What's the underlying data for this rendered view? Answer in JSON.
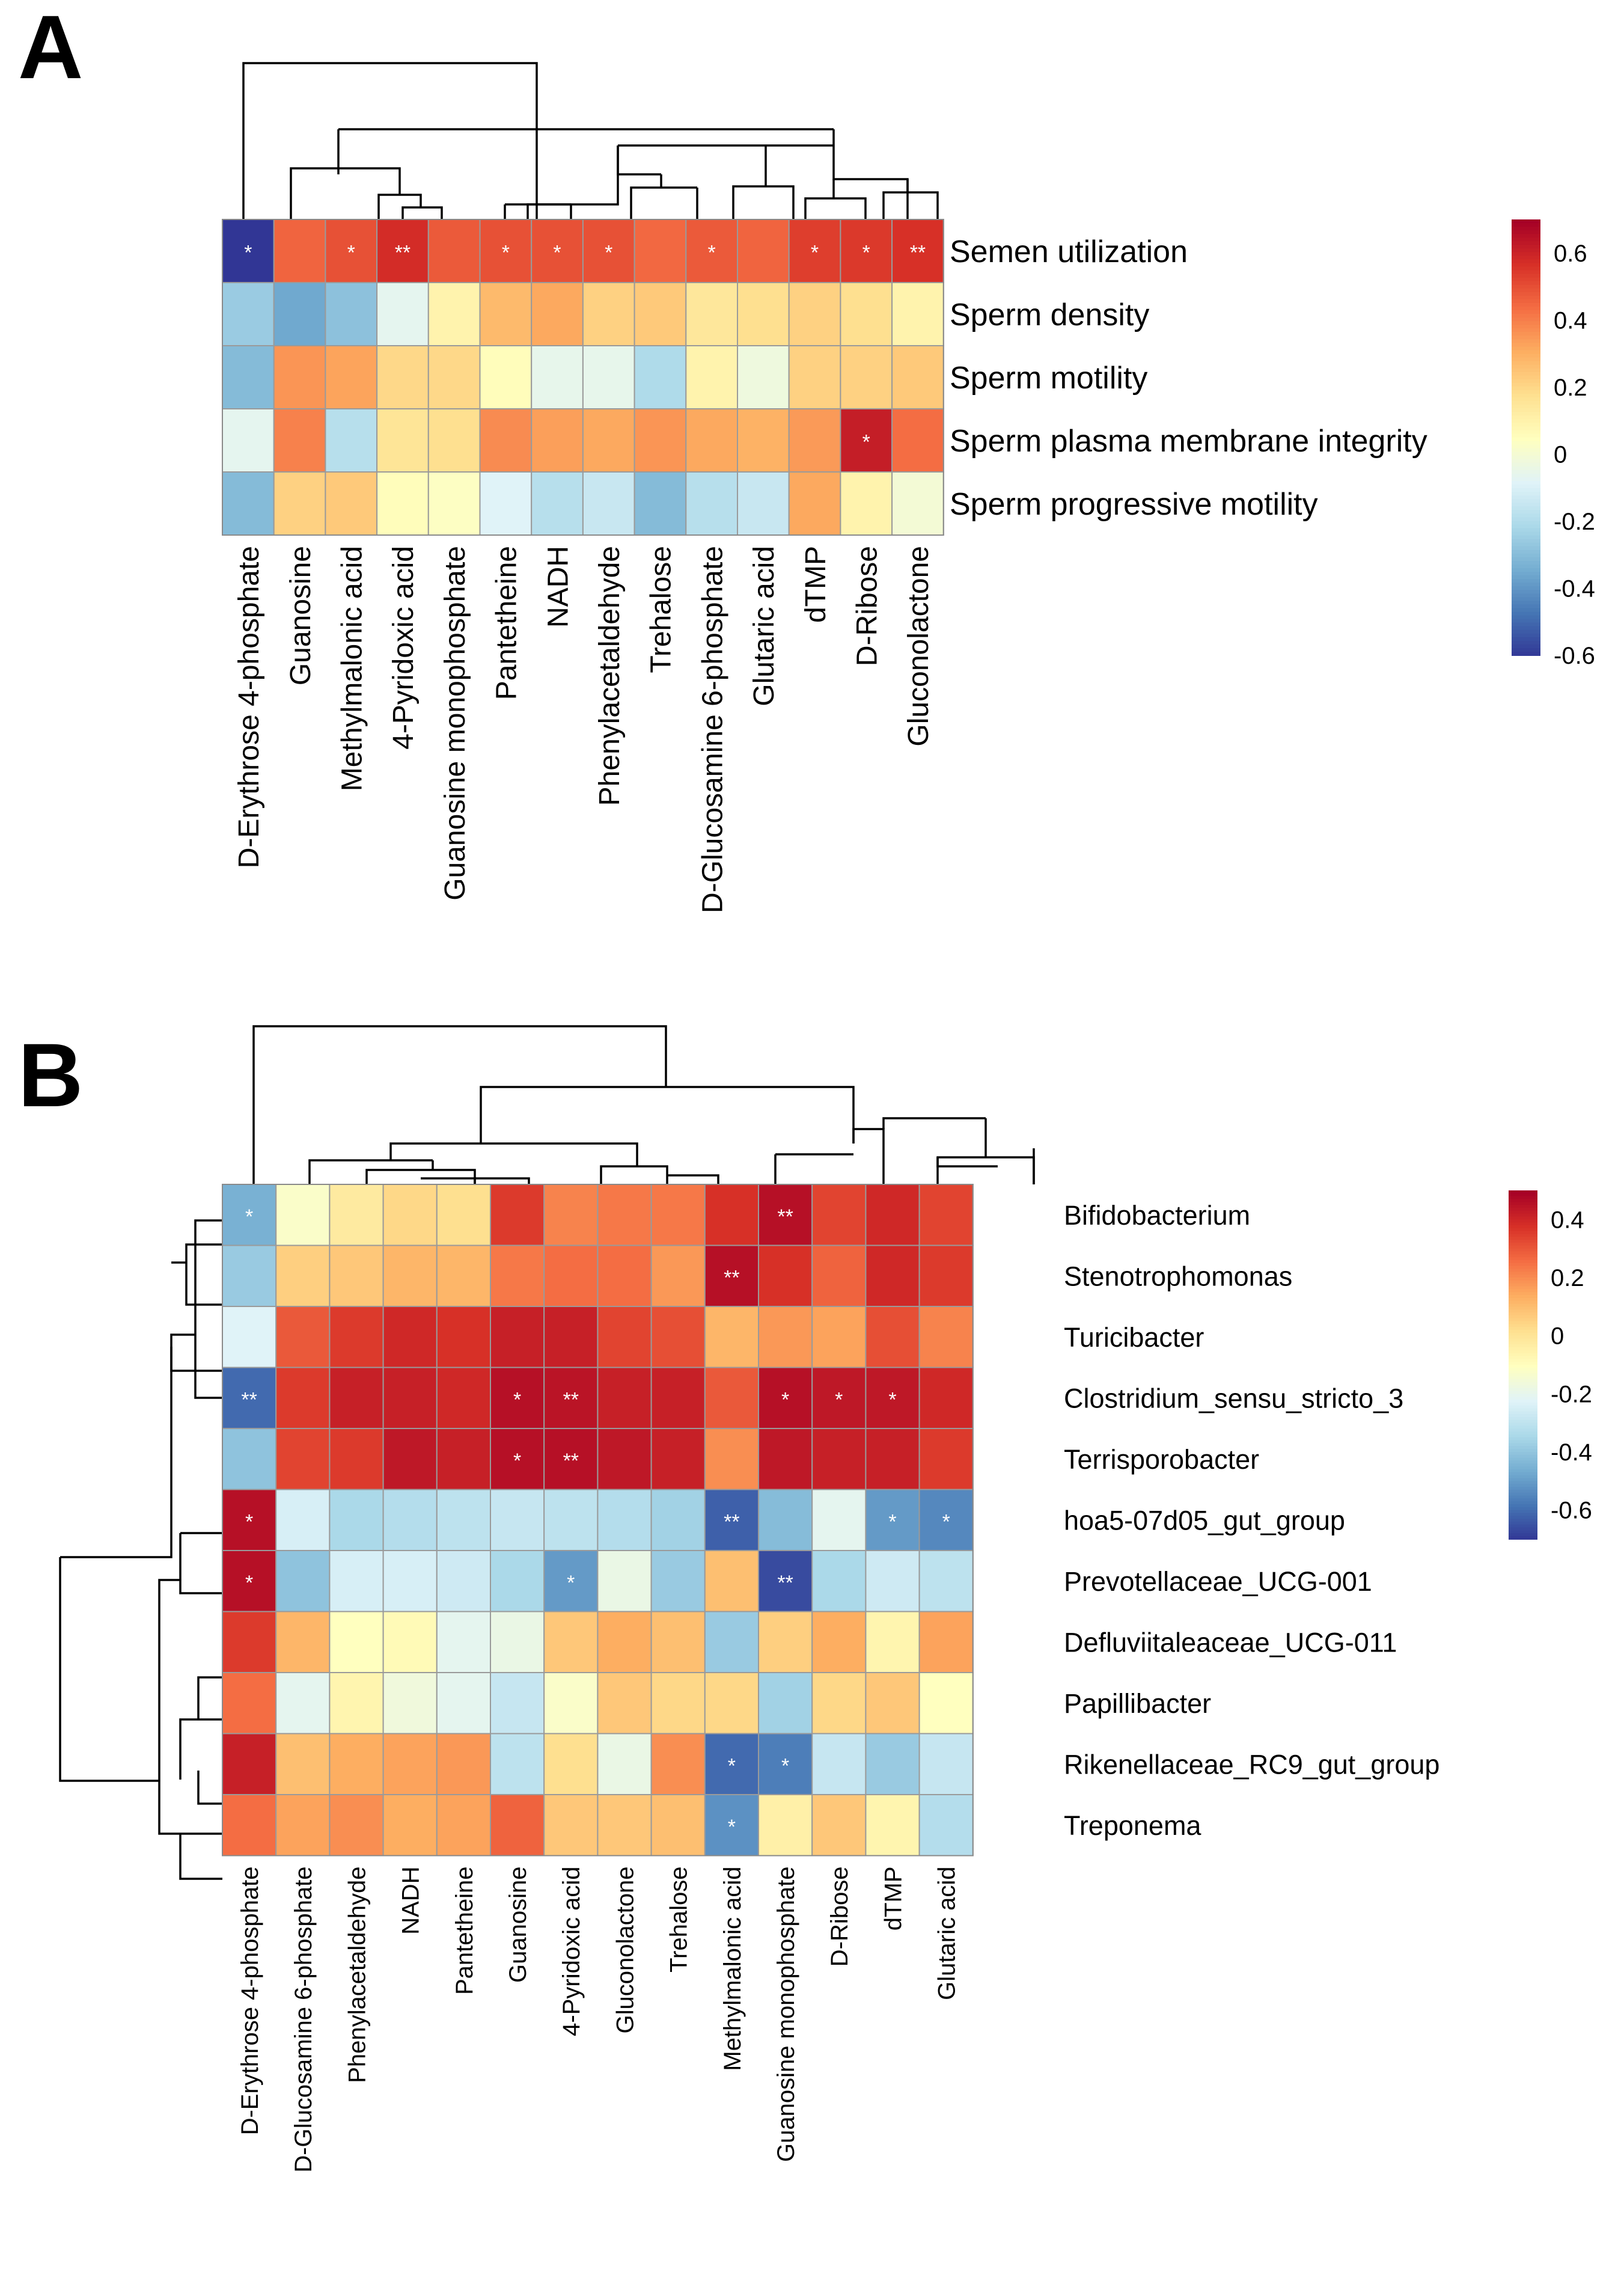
{
  "chart_data": [
    {
      "panel_label": "A",
      "type": "heatmap",
      "rows": [
        "Semen utilization",
        "Sperm density",
        "Sperm motility",
        "Sperm plasma membrane integrity",
        "Sperm progressive motility"
      ],
      "columns": [
        "D-Erythrose 4-phosphate",
        "Guanosine",
        "Methylmalonic acid",
        "4-Pyridoxic acid",
        "Guanosine monophosphate",
        "Pantetheine",
        "NADH",
        "Phenylacetaldehyde",
        "Trehalose",
        "D-Glucosamine 6-phosphate",
        "Glutaric acid",
        "dTMP",
        "D-Ribose",
        "Gluconolactone"
      ],
      "values": [
        [
          -0.6,
          0.46,
          0.5,
          0.58,
          0.48,
          0.5,
          0.5,
          0.5,
          0.45,
          0.48,
          0.46,
          0.54,
          0.55,
          0.57
        ],
        [
          -0.25,
          -0.35,
          -0.28,
          -0.06,
          0.1,
          0.28,
          0.32,
          0.22,
          0.24,
          0.15,
          0.18,
          0.22,
          0.18,
          0.1
        ],
        [
          -0.3,
          0.36,
          0.33,
          0.2,
          0.2,
          0.06,
          -0.05,
          -0.05,
          -0.2,
          0.1,
          -0.02,
          0.22,
          0.22,
          0.24
        ],
        [
          -0.06,
          0.4,
          -0.18,
          0.16,
          0.18,
          0.38,
          0.34,
          0.32,
          0.36,
          0.32,
          0.3,
          0.35,
          0.62,
          0.44
        ],
        [
          -0.3,
          0.22,
          0.24,
          0.06,
          0.04,
          -0.08,
          -0.18,
          -0.14,
          -0.3,
          -0.18,
          -0.14,
          0.32,
          0.1,
          0.0
        ]
      ],
      "significance": [
        [
          "*",
          "",
          "*",
          "**",
          "",
          "*",
          "*",
          "*",
          "",
          "*",
          "",
          "*",
          "*",
          "**"
        ],
        [
          "",
          "",
          "",
          "",
          "",
          "",
          "",
          "",
          "",
          "",
          "",
          "",
          "",
          ""
        ],
        [
          "",
          "",
          "",
          "",
          "",
          "",
          "",
          "",
          "",
          "",
          "",
          "",
          "",
          ""
        ],
        [
          "",
          "",
          "",
          "",
          "",
          "",
          "",
          "",
          "",
          "",
          "",
          "",
          "*",
          ""
        ],
        [
          "",
          "",
          "",
          "",
          "",
          "",
          "",
          "",
          "",
          "",
          "",
          "",
          "",
          ""
        ]
      ],
      "color_scale": {
        "min": -0.6,
        "max": 0.7,
        "ticks": [
          0.6,
          0.4,
          0.2,
          0,
          -0.2,
          -0.4,
          -0.6
        ],
        "tick_labels": [
          "0.6",
          "0.4",
          "0.2",
          "0",
          "-0.2",
          "-0.4",
          "-0.6"
        ],
        "colors": [
          "#313695",
          "#4575b4",
          "#74add1",
          "#abd9e9",
          "#e0f3f8",
          "#ffffbf",
          "#fee090",
          "#fdae61",
          "#f46d43",
          "#d73027",
          "#a50026"
        ]
      },
      "column_dendrogram": true,
      "row_dendrogram": false
    },
    {
      "panel_label": "B",
      "type": "heatmap",
      "rows": [
        "Bifidobacterium",
        "Stenotrophomonas",
        "Turicibacter",
        "Clostridium_sensu_stricto_3",
        "Terrisporobacter",
        "hoa5-07d05_gut_group",
        "Prevotellaceae_UCG-001",
        "Defluviitaleaceae_UCG-011",
        "Papillibacter",
        "Rikenellaceae_RC9_gut_group",
        "Treponema"
      ],
      "columns": [
        "D-Erythrose 4-phosphate",
        "D-Glucosamine 6-phosphate",
        "Phenylacetaldehyde",
        "NADH",
        "Pantetheine",
        "Guanosine",
        "4-Pyridoxic acid",
        "Gluconolactone",
        "Trehalose",
        "Methylmalonic acid",
        "Guanosine monophosphate",
        "D-Ribose",
        "dTMP",
        "Glutaric acid"
      ],
      "values": [
        [
          -0.45,
          -0.12,
          -0.02,
          0.04,
          0.02,
          0.36,
          0.22,
          0.24,
          0.24,
          0.38,
          0.46,
          0.34,
          0.4,
          0.34
        ],
        [
          -0.38,
          0.06,
          0.08,
          0.12,
          0.12,
          0.24,
          0.26,
          0.26,
          0.18,
          0.46,
          0.38,
          0.28,
          0.4,
          0.36
        ],
        [
          -0.22,
          0.3,
          0.36,
          0.4,
          0.38,
          0.42,
          0.42,
          0.34,
          0.32,
          0.12,
          0.18,
          0.16,
          0.32,
          0.22
        ],
        [
          -0.6,
          0.36,
          0.42,
          0.42,
          0.4,
          0.46,
          0.45,
          0.42,
          0.42,
          0.3,
          0.46,
          0.44,
          0.44,
          0.4
        ],
        [
          -0.4,
          0.34,
          0.36,
          0.44,
          0.42,
          0.46,
          0.46,
          0.44,
          0.42,
          0.2,
          0.44,
          0.42,
          0.42,
          0.36
        ],
        [
          0.46,
          -0.24,
          -0.34,
          -0.32,
          -0.3,
          -0.28,
          -0.3,
          -0.32,
          -0.36,
          -0.62,
          -0.42,
          -0.2,
          -0.5,
          -0.54
        ],
        [
          0.46,
          -0.4,
          -0.24,
          -0.24,
          -0.26,
          -0.34,
          -0.5,
          -0.18,
          -0.38,
          0.1,
          -0.66,
          -0.34,
          -0.26,
          -0.3
        ],
        [
          0.36,
          0.12,
          -0.1,
          -0.08,
          -0.2,
          -0.18,
          0.08,
          0.14,
          0.1,
          -0.38,
          0.06,
          0.14,
          -0.06,
          0.16
        ],
        [
          0.26,
          -0.2,
          -0.06,
          -0.16,
          -0.2,
          -0.28,
          -0.12,
          0.08,
          0.04,
          0.04,
          -0.36,
          0.04,
          0.08,
          -0.1
        ],
        [
          0.42,
          0.1,
          0.14,
          0.16,
          0.18,
          -0.3,
          0.02,
          -0.18,
          0.2,
          -0.6,
          -0.56,
          -0.28,
          -0.38,
          -0.28
        ],
        [
          0.26,
          0.16,
          0.2,
          0.14,
          0.16,
          0.28,
          0.08,
          0.08,
          0.1,
          -0.52,
          -0.04,
          0.08,
          -0.06,
          -0.32
        ]
      ],
      "significance": [
        [
          "*",
          "",
          "",
          "",
          "",
          "",
          "",
          "",
          "",
          "",
          "**",
          "",
          "",
          ""
        ],
        [
          "",
          "",
          "",
          "",
          "",
          "",
          "",
          "",
          "",
          "**",
          "",
          "",
          "",
          ""
        ],
        [
          "",
          "",
          "",
          "",
          "",
          "",
          "",
          "",
          "",
          "",
          "",
          "",
          "",
          ""
        ],
        [
          "**",
          "",
          "",
          "",
          "",
          "*",
          "**",
          "",
          "",
          "",
          "*",
          "*",
          "*",
          ""
        ],
        [
          "",
          "",
          "",
          "",
          "",
          "*",
          "**",
          "",
          "",
          "",
          "",
          "",
          "",
          ""
        ],
        [
          "*",
          "",
          "",
          "",
          "",
          "",
          "",
          "",
          "",
          "**",
          "",
          "",
          "*",
          "*"
        ],
        [
          "*",
          "",
          "",
          "",
          "",
          "",
          "*",
          "",
          "",
          "",
          "**",
          "",
          "",
          ""
        ],
        [
          "",
          "",
          "",
          "",
          "",
          "",
          "",
          "",
          "",
          "",
          "",
          "",
          "",
          ""
        ],
        [
          "",
          "",
          "",
          "",
          "",
          "",
          "",
          "",
          "",
          "",
          "",
          "",
          "",
          ""
        ],
        [
          "",
          "",
          "",
          "",
          "",
          "",
          "",
          "",
          "",
          "*",
          "*",
          "",
          "",
          ""
        ],
        [
          "",
          "",
          "",
          "",
          "",
          "",
          "",
          "",
          "",
          "*",
          "",
          "",
          "",
          ""
        ]
      ],
      "color_scale": {
        "min": -0.7,
        "max": 0.5,
        "ticks": [
          0.4,
          0.2,
          0,
          -0.2,
          -0.4,
          -0.6
        ],
        "tick_labels": [
          "0.4",
          "0.2",
          "0",
          "-0.2",
          "-0.4",
          "-0.6"
        ],
        "colors": [
          "#313695",
          "#4575b4",
          "#74add1",
          "#abd9e9",
          "#e0f3f8",
          "#ffffbf",
          "#fee090",
          "#fdae61",
          "#f46d43",
          "#d73027",
          "#a50026"
        ]
      },
      "column_dendrogram": true,
      "row_dendrogram": true
    }
  ]
}
